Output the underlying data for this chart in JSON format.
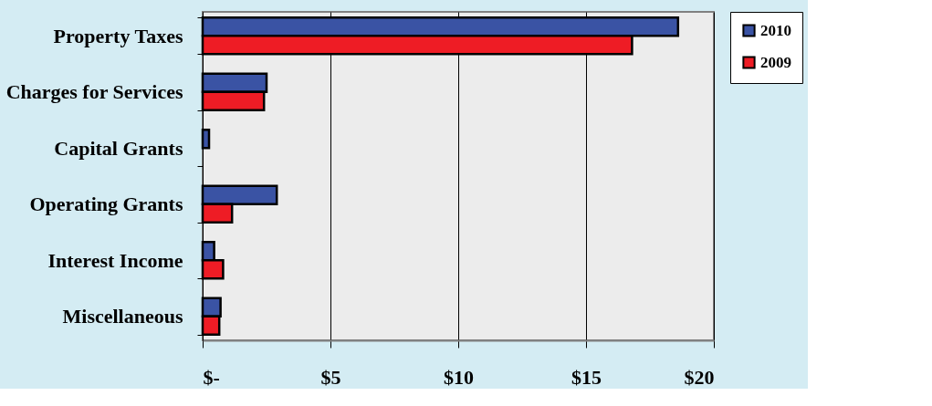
{
  "chart_data": {
    "type": "bar",
    "orientation": "horizontal",
    "categories": [
      "Property Taxes",
      "Charges for Services",
      "Capital Grants",
      "Operating Grants",
      "Interest Income",
      "Miscellaneous"
    ],
    "series": [
      {
        "name": "2010",
        "color": "#3a53a4",
        "values": [
          18.6,
          2.5,
          0.25,
          2.9,
          0.45,
          0.7
        ]
      },
      {
        "name": "2009",
        "color": "#ee1c25",
        "values": [
          16.8,
          2.4,
          null,
          1.15,
          0.8,
          0.65
        ]
      }
    ],
    "xlim": [
      0,
      20
    ],
    "xticks": [
      {
        "value": 0,
        "label": "$-"
      },
      {
        "value": 5,
        "label": "$5"
      },
      {
        "value": 10,
        "label": "$10"
      },
      {
        "value": 15,
        "label": "$15"
      },
      {
        "value": 20,
        "label": "$20"
      }
    ],
    "grid": "x",
    "legend": "right"
  }
}
